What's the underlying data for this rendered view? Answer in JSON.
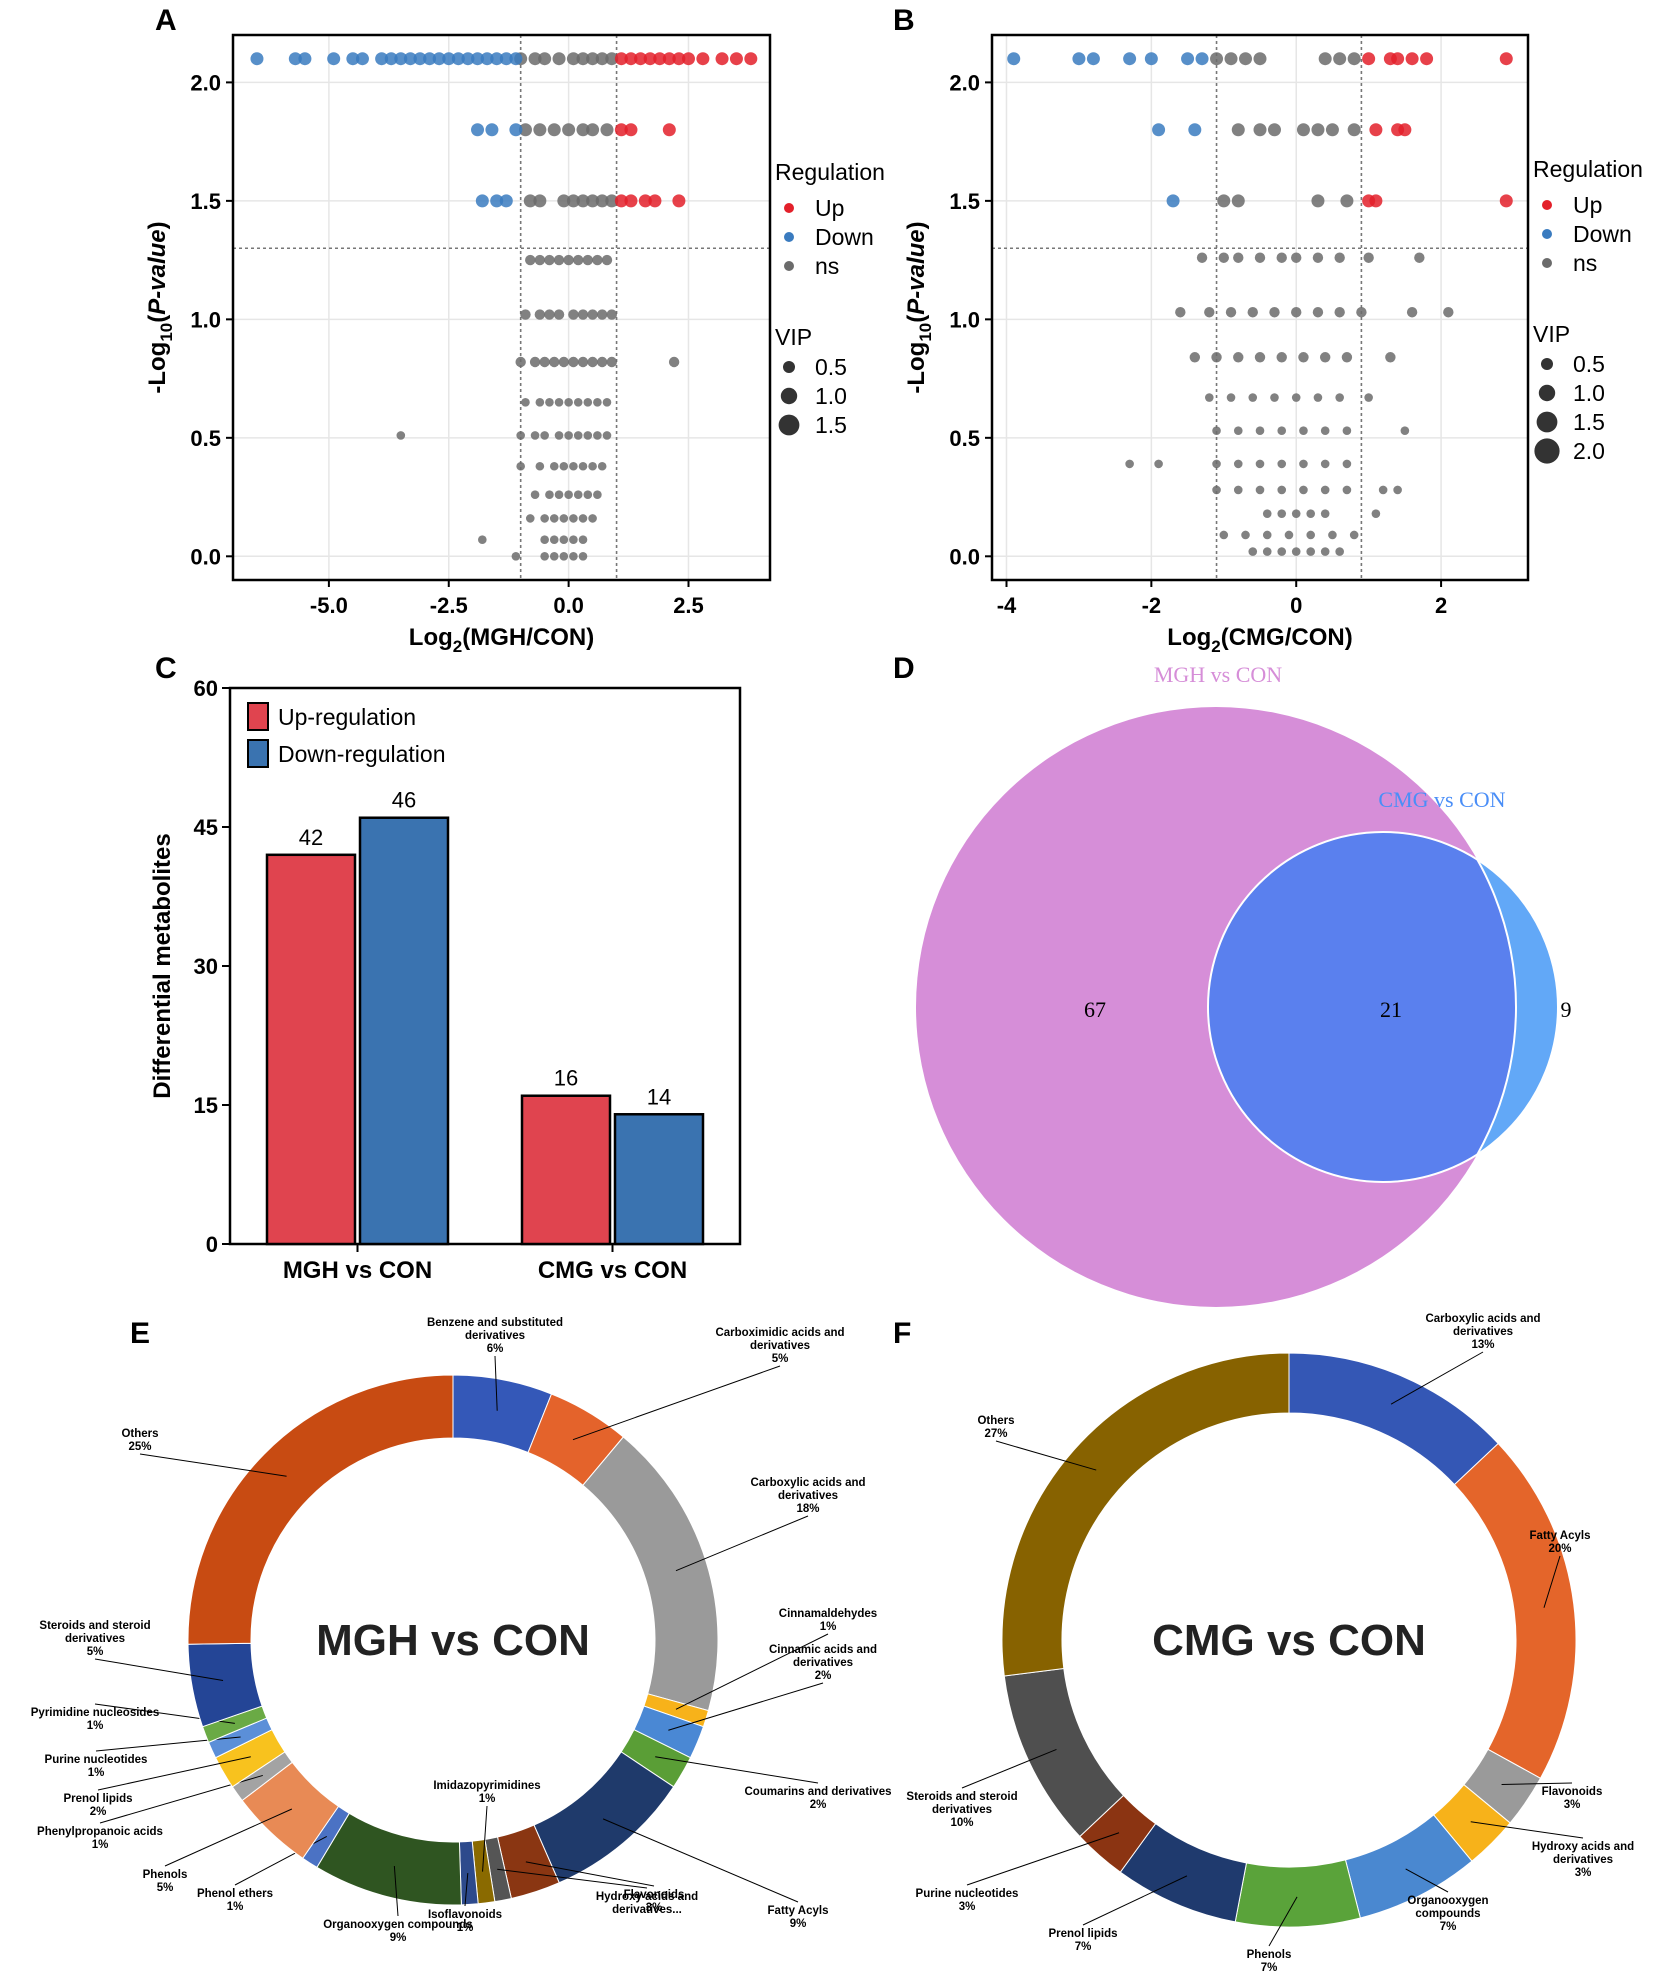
{
  "chart_data": [
    {
      "id": "A",
      "panel_label": "A",
      "type": "scatter",
      "xlabel": "Log2(MGH/CON)",
      "ylabel": "-Log10(P-value)",
      "xlim": [
        -7.0,
        4.2
      ],
      "ylim": [
        -0.1,
        2.2
      ],
      "xticks": [
        "-5.0",
        "-2.5",
        "0.0",
        "2.5"
      ],
      "xtick_values": [
        -5.0,
        -2.5,
        0.0,
        2.5
      ],
      "yticks": [
        "0.0",
        "0.5",
        "1.0",
        "1.5",
        "2.0"
      ],
      "ytick_values": [
        0.0,
        0.5,
        1.0,
        1.5,
        2.0
      ],
      "thresholds": {
        "fc": [
          -1.0,
          1.0
        ],
        "p": 1.3
      },
      "legend": {
        "title": "Regulation",
        "items": [
          {
            "label": "Up",
            "color": "#e3202a"
          },
          {
            "label": "Down",
            "color": "#3a7bbf"
          },
          {
            "label": "ns",
            "color": "#6b6b6b"
          }
        ],
        "size_title": "VIP",
        "sizes": [
          "0.5",
          "1.0",
          "1.5"
        ]
      },
      "rows": [
        {
          "y": 2.1,
          "down_x": [
            -6.5,
            -5.7,
            -5.5,
            -4.9,
            -4.5,
            -4.3,
            -3.9,
            -3.7,
            -3.5,
            -3.3,
            -3.1,
            -2.9,
            -2.7,
            -2.5,
            -2.3,
            -2.1,
            -1.9,
            -1.7,
            -1.5,
            -1.3,
            -1.1
          ],
          "ns_x": [
            -1.0,
            -0.7,
            -0.5,
            -0.2,
            0.1,
            0.3,
            0.5,
            0.7,
            0.9
          ],
          "up_x": [
            1.1,
            1.3,
            1.5,
            1.7,
            1.9,
            2.1,
            2.3,
            2.5,
            2.8,
            3.2,
            3.5,
            3.8
          ]
        },
        {
          "y": 1.8,
          "down_x": [
            -1.9,
            -1.6,
            -1.1
          ],
          "ns_x": [
            -0.9,
            -0.6,
            -0.3,
            0.0,
            0.3,
            0.5,
            0.8
          ],
          "up_x": [
            1.1,
            1.3,
            2.1
          ]
        },
        {
          "y": 1.5,
          "down_x": [
            -1.8,
            -1.5,
            -1.3
          ],
          "ns_x": [
            -0.8,
            -0.6,
            -0.1,
            0.1,
            0.3,
            0.5,
            0.7,
            0.9
          ],
          "up_x": [
            1.1,
            1.3,
            1.6,
            1.8,
            2.3
          ]
        },
        {
          "y": 1.25,
          "down_x": [],
          "ns_x": [
            -0.8,
            -0.6,
            -0.4,
            -0.2,
            0.0,
            0.2,
            0.4,
            0.6,
            0.8
          ],
          "up_x": []
        },
        {
          "y": 1.02,
          "down_x": [],
          "ns_x": [
            -0.9,
            -0.6,
            -0.4,
            -0.2,
            0.1,
            0.3,
            0.5,
            0.7,
            0.9
          ],
          "up_x": []
        },
        {
          "y": 0.82,
          "down_x": [],
          "ns_x": [
            -1.0,
            -0.7,
            -0.5,
            -0.3,
            -0.1,
            0.1,
            0.3,
            0.5,
            0.7,
            0.9,
            2.2
          ],
          "up_x": []
        },
        {
          "y": 0.65,
          "down_x": [],
          "ns_x": [
            -0.9,
            -0.6,
            -0.4,
            -0.2,
            0.0,
            0.2,
            0.4,
            0.6,
            0.8
          ],
          "up_x": []
        },
        {
          "y": 0.51,
          "down_x": [],
          "ns_x": [
            -3.5,
            -1.0,
            -0.7,
            -0.5,
            -0.2,
            0.0,
            0.2,
            0.4,
            0.6,
            0.8
          ],
          "up_x": []
        },
        {
          "y": 0.38,
          "down_x": [],
          "ns_x": [
            -1.0,
            -0.6,
            -0.3,
            -0.1,
            0.1,
            0.3,
            0.5,
            0.7
          ],
          "up_x": []
        },
        {
          "y": 0.26,
          "down_x": [],
          "ns_x": [
            -0.7,
            -0.4,
            -0.2,
            0.0,
            0.2,
            0.4,
            0.6
          ],
          "up_x": []
        },
        {
          "y": 0.16,
          "down_x": [],
          "ns_x": [
            -0.8,
            -0.5,
            -0.3,
            -0.1,
            0.1,
            0.3,
            0.5
          ],
          "up_x": []
        },
        {
          "y": 0.07,
          "down_x": [],
          "ns_x": [
            -1.8,
            -0.5,
            -0.3,
            -0.1,
            0.1,
            0.3
          ],
          "up_x": []
        },
        {
          "y": 0.0,
          "down_x": [],
          "ns_x": [
            -1.1,
            -0.5,
            -0.3,
            -0.1,
            0.1,
            0.3
          ],
          "up_x": []
        }
      ]
    },
    {
      "id": "B",
      "panel_label": "B",
      "type": "scatter",
      "xlabel": "Log2(CMG/CON)",
      "ylabel": "-Log10(P-value)",
      "xlim": [
        -4.2,
        3.2
      ],
      "ylim": [
        -0.1,
        2.2
      ],
      "xticks": [
        "-4",
        "-2",
        "0",
        "2"
      ],
      "xtick_values": [
        -4,
        -2,
        0,
        2
      ],
      "yticks": [
        "0.0",
        "0.5",
        "1.0",
        "1.5",
        "2.0"
      ],
      "ytick_values": [
        0.0,
        0.5,
        1.0,
        1.5,
        2.0
      ],
      "thresholds": {
        "fc": [
          -1.1,
          0.9
        ],
        "p": 1.3
      },
      "legend": {
        "title": "Regulation",
        "items": [
          {
            "label": "Up",
            "color": "#e3202a"
          },
          {
            "label": "Down",
            "color": "#3a7bbf"
          },
          {
            "label": "ns",
            "color": "#6b6b6b"
          }
        ],
        "size_title": "VIP",
        "sizes": [
          "0.5",
          "1.0",
          "1.5",
          "2.0"
        ]
      },
      "rows": [
        {
          "y": 2.1,
          "down_x": [
            -3.9,
            -3.0,
            -2.8,
            -2.3,
            -2.0,
            -1.5,
            -1.3
          ],
          "ns_x": [
            -1.1,
            -0.9,
            -0.7,
            -0.5,
            0.4,
            0.6,
            0.8
          ],
          "up_x": [
            1.0,
            1.3,
            1.4,
            1.6,
            1.8,
            2.9
          ]
        },
        {
          "y": 1.8,
          "down_x": [
            -1.9,
            -1.4
          ],
          "ns_x": [
            -0.8,
            -0.5,
            -0.3,
            0.1,
            0.3,
            0.5,
            0.8
          ],
          "up_x": [
            1.1,
            1.4,
            1.5
          ]
        },
        {
          "y": 1.5,
          "down_x": [
            -1.7
          ],
          "ns_x": [
            -1.0,
            -0.8,
            0.3,
            0.7
          ],
          "up_x": [
            1.0,
            1.1,
            2.9
          ]
        },
        {
          "y": 1.26,
          "down_x": [],
          "ns_x": [
            -1.3,
            -1.0,
            -0.8,
            -0.5,
            -0.2,
            0.0,
            0.3,
            0.6,
            1.0,
            1.7
          ],
          "up_x": []
        },
        {
          "y": 1.03,
          "down_x": [],
          "ns_x": [
            -1.6,
            -1.2,
            -0.9,
            -0.6,
            -0.3,
            0.0,
            0.3,
            0.6,
            0.9,
            1.6,
            2.1
          ],
          "up_x": []
        },
        {
          "y": 0.84,
          "down_x": [],
          "ns_x": [
            -1.4,
            -1.1,
            -0.8,
            -0.5,
            -0.2,
            0.1,
            0.4,
            0.7,
            1.3
          ],
          "up_x": []
        },
        {
          "y": 0.67,
          "down_x": [],
          "ns_x": [
            -1.2,
            -0.9,
            -0.6,
            -0.3,
            0.0,
            0.3,
            0.6,
            1.0
          ],
          "up_x": []
        },
        {
          "y": 0.53,
          "down_x": [],
          "ns_x": [
            -1.1,
            -0.8,
            -0.5,
            -0.2,
            0.1,
            0.4,
            0.7,
            1.5
          ],
          "up_x": []
        },
        {
          "y": 0.39,
          "down_x": [],
          "ns_x": [
            -2.3,
            -1.9,
            -1.1,
            -0.8,
            -0.5,
            -0.2,
            0.1,
            0.4,
            0.7
          ],
          "up_x": []
        },
        {
          "y": 0.28,
          "down_x": [],
          "ns_x": [
            -1.1,
            -0.8,
            -0.5,
            -0.2,
            0.1,
            0.4,
            0.7,
            1.2,
            1.4
          ],
          "up_x": []
        },
        {
          "y": 0.18,
          "down_x": [],
          "ns_x": [
            -0.4,
            -0.2,
            0.0,
            0.2,
            0.4,
            1.1
          ],
          "up_x": []
        },
        {
          "y": 0.09,
          "down_x": [],
          "ns_x": [
            -1.0,
            -0.7,
            -0.4,
            -0.1,
            0.2,
            0.5,
            0.8
          ],
          "up_x": []
        },
        {
          "y": 0.02,
          "down_x": [],
          "ns_x": [
            -0.6,
            -0.4,
            -0.2,
            0.0,
            0.2,
            0.4,
            0.6
          ],
          "up_x": []
        }
      ]
    },
    {
      "id": "C",
      "panel_label": "C",
      "type": "bar",
      "ylabel": "Differential metabolites",
      "ylim": [
        0,
        60
      ],
      "yticks": [
        "0",
        "15",
        "30",
        "45",
        "60"
      ],
      "ytick_values": [
        0,
        15,
        30,
        45,
        60
      ],
      "categories": [
        "MGH vs CON",
        "CMG vs CON"
      ],
      "series": [
        {
          "name": "Up-regulation",
          "color": "#e0444f",
          "values": [
            42,
            16
          ],
          "labels": [
            "42",
            "16"
          ]
        },
        {
          "name": "Down-regulation",
          "color": "#3a73b0",
          "values": [
            46,
            14
          ],
          "labels": [
            "46",
            "14"
          ]
        }
      ]
    },
    {
      "id": "D",
      "panel_label": "D",
      "type": "venn",
      "sets": [
        {
          "name": "MGH vs CON",
          "color": "#d68ed8",
          "only": 67
        },
        {
          "name": "CMG vs CON",
          "color": "#62a8f7",
          "only": 9
        }
      ],
      "overlap": 21,
      "overlap_color": "#5a80ee",
      "labels": {
        "left": "67",
        "mid": "21",
        "right": "9"
      }
    },
    {
      "id": "E",
      "panel_label": "E",
      "type": "pie",
      "center_title": "MGH vs CON",
      "slices": [
        {
          "name": "Benzene and substituted derivatives",
          "pct": "6%",
          "value": 6,
          "color": "#3458b8",
          "lines": [
            "Benzene and substituted",
            "derivatives",
            "6%"
          ]
        },
        {
          "name": "Carboximidic acids and derivatives",
          "pct": "5%",
          "value": 5,
          "color": "#e4632b",
          "lines": [
            "Carboximidic acids and",
            "derivatives",
            "5%"
          ]
        },
        {
          "name": "Carboxylic acids and derivatives",
          "pct": "18%",
          "value": 18,
          "color": "#9a9a9a",
          "lines": [
            "Carboxylic acids and",
            "derivatives",
            "18%"
          ]
        },
        {
          "name": "Cinnamaldehydes",
          "pct": "1%",
          "value": 1,
          "color": "#f7b21a",
          "lines": [
            "Cinnamaldehydes",
            "1%"
          ]
        },
        {
          "name": "Cinnamic acids and derivatives",
          "pct": "2%",
          "value": 2,
          "color": "#4a88d4",
          "lines": [
            "Cinnamic acids and",
            "derivatives",
            "2%"
          ]
        },
        {
          "name": "Coumarins and derivatives",
          "pct": "2%",
          "value": 2,
          "color": "#5a9e36",
          "lines": [
            "Coumarins and derivatives",
            "2%"
          ]
        },
        {
          "name": "Fatty Acyls",
          "pct": "9%",
          "value": 9,
          "color": "#1f3a6b",
          "lines": [
            "Fatty Acyls",
            "9%"
          ]
        },
        {
          "name": "Flavonoids",
          "pct": "3%",
          "value": 3,
          "color": "#8a3612",
          "lines": [
            "Flavonoids",
            "3%"
          ]
        },
        {
          "name": "Hydroxy acids and derivatives...",
          "pct": "",
          "value": 1,
          "color": "#555555",
          "lines": [
            "Hydroxy acids and",
            "derivatives..."
          ]
        },
        {
          "name": "Imidazopyrimidines",
          "pct": "1%",
          "value": 1,
          "color": "#8a6a00",
          "lines": [
            "Imidazopyrimidines",
            "1%"
          ]
        },
        {
          "name": "Isoflavonoids",
          "pct": "1%",
          "value": 1,
          "color": "#2d4a8c",
          "lines": [
            "Isoflavonoids",
            "1%"
          ]
        },
        {
          "name": "Organooxygen compounds",
          "pct": "9%",
          "value": 9,
          "color": "#2f5521",
          "lines": [
            "Organooxygen compounds",
            "9%"
          ]
        },
        {
          "name": "Phenol ethers",
          "pct": "1%",
          "value": 1,
          "color": "#4b72c4",
          "lines": [
            "Phenol ethers",
            "1%"
          ]
        },
        {
          "name": "Phenols",
          "pct": "5%",
          "value": 5,
          "color": "#e88a55",
          "lines": [
            "Phenols",
            "5%"
          ]
        },
        {
          "name": "Phenylpropanoic acids",
          "pct": "1%",
          "value": 1,
          "color": "#a3a3a3",
          "lines": [
            "Phenylpropanoic acids",
            "1%"
          ]
        },
        {
          "name": "Prenol lipids",
          "pct": "2%",
          "value": 2,
          "color": "#f8c21e",
          "lines": [
            "Prenol lipids",
            "2%"
          ]
        },
        {
          "name": "Purine nucleotides",
          "pct": "1%",
          "value": 1,
          "color": "#5b8fd8",
          "lines": [
            "Purine nucleotides",
            "1%"
          ]
        },
        {
          "name": "Pyrimidine nucleosides",
          "pct": "1%",
          "value": 1,
          "color": "#6aaa45",
          "lines": [
            "Pyrimidine nucleosides",
            "1%"
          ]
        },
        {
          "name": "Steroids and steroid derivatives",
          "pct": "5%",
          "value": 5,
          "color": "#244596",
          "lines": [
            "Steroids and steroid",
            "derivatives",
            "5%"
          ]
        },
        {
          "name": "Others",
          "pct": "25%",
          "value": 25,
          "color": "#c84b12",
          "lines": [
            "Others",
            "25%"
          ]
        }
      ]
    },
    {
      "id": "F",
      "panel_label": "F",
      "type": "pie",
      "center_title": "CMG vs CON",
      "slices": [
        {
          "name": "Carboxylic acids and derivatives",
          "pct": "13%",
          "value": 13,
          "color": "#3457b5",
          "lines": [
            "Carboxylic acids and",
            "derivatives",
            "13%"
          ]
        },
        {
          "name": "Fatty Acyls",
          "pct": "20%",
          "value": 20,
          "color": "#e4652a",
          "lines": [
            "Fatty Acyls",
            "20%"
          ]
        },
        {
          "name": "Flavonoids",
          "pct": "3%",
          "value": 3,
          "color": "#9a9a9a",
          "lines": [
            "Flavonoids",
            "3%"
          ]
        },
        {
          "name": "Hydroxy acids and derivatives",
          "pct": "3%",
          "value": 3,
          "color": "#f7b21a",
          "lines": [
            "Hydroxy acids and",
            "derivatives",
            "3%"
          ]
        },
        {
          "name": "Organooxygen compounds",
          "pct": "7%",
          "value": 7,
          "color": "#4a88d0",
          "lines": [
            "Organooxygen",
            "compounds",
            "7%"
          ]
        },
        {
          "name": "Phenols",
          "pct": "7%",
          "value": 7,
          "color": "#5aa33a",
          "lines": [
            "Phenols",
            "7%"
          ]
        },
        {
          "name": "Prenol lipids",
          "pct": "7%",
          "value": 7,
          "color": "#1f3a6e",
          "lines": [
            "Prenol lipids",
            "7%"
          ]
        },
        {
          "name": "Purine nucleotides",
          "pct": "3%",
          "value": 3,
          "color": "#8b3412",
          "lines": [
            "Purine nucleotides",
            "3%"
          ]
        },
        {
          "name": "Steroids and steroid derivatives",
          "pct": "10%",
          "value": 10,
          "color": "#4f4f4f",
          "lines": [
            "Steroids and steroid",
            "derivatives",
            "10%"
          ]
        },
        {
          "name": "Others",
          "pct": "27%",
          "value": 27,
          "color": "#876200",
          "lines": [
            "Others",
            "27%"
          ]
        }
      ]
    }
  ]
}
